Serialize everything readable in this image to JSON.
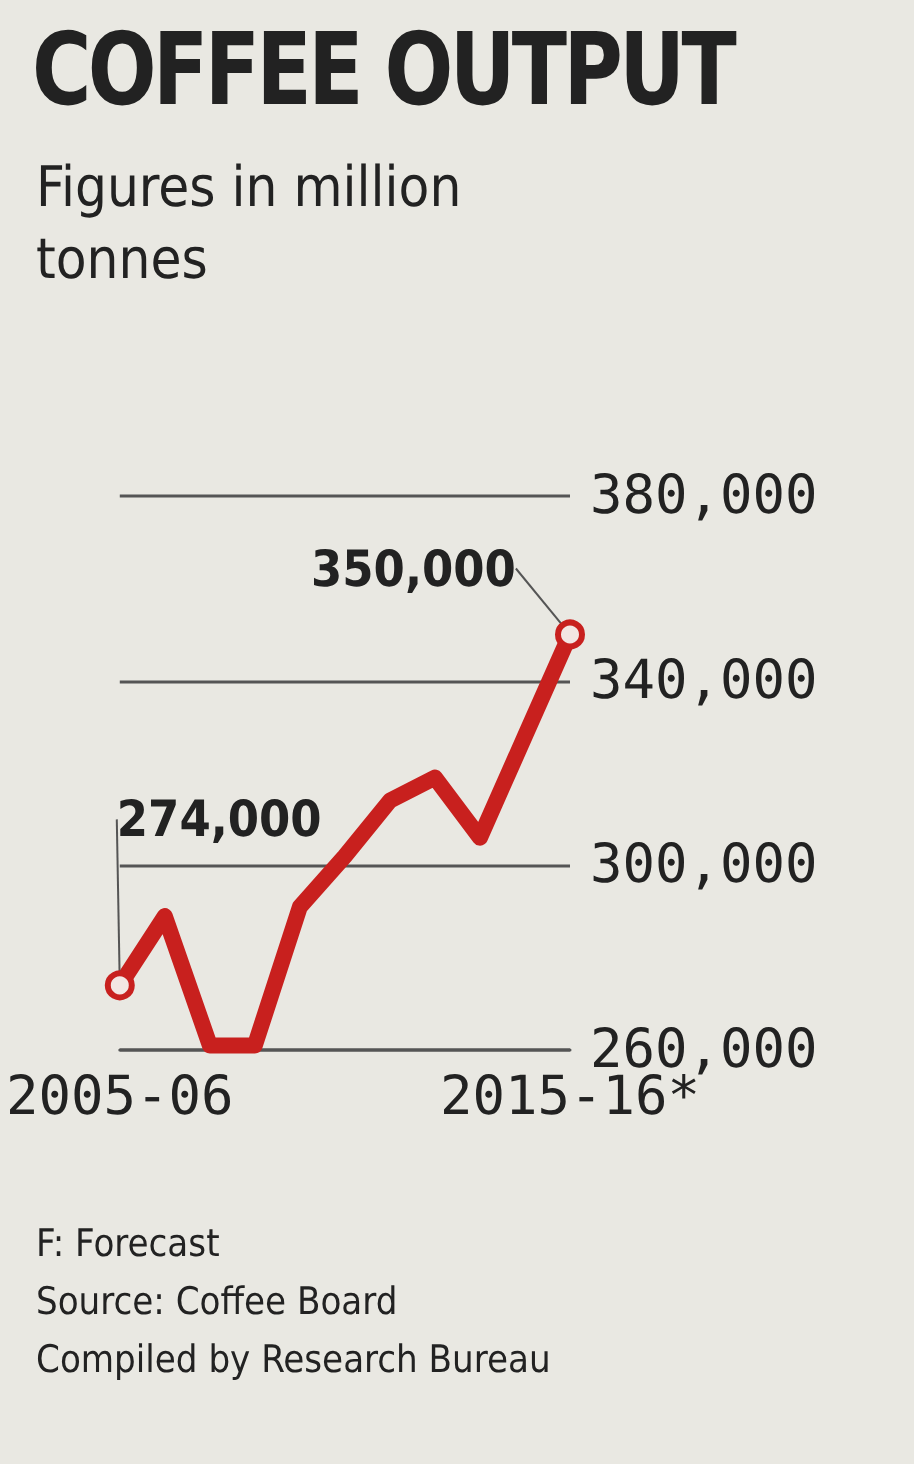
{
  "chart_data": {
    "type": "line",
    "title": "COFFEE OUTPUT",
    "subtitle": "Figures in million tonnes",
    "categories": [
      "2005-06",
      null,
      null,
      null,
      null,
      null,
      null,
      null,
      null,
      null,
      "2015-16*"
    ],
    "series": [
      {
        "color": "#c8201e",
        "values": [
          274000,
          289000,
          261000,
          261000,
          291000,
          302000,
          314000,
          319000,
          306000,
          328000,
          350000
        ],
        "value_labels": [
          "274,000",
          null,
          null,
          null,
          null,
          null,
          null,
          null,
          null,
          null,
          "350,000"
        ]
      }
    ],
    "ylim": [
      260000,
      380000
    ],
    "yticks": [
      {
        "value": 260000,
        "label": "260,000"
      },
      {
        "value": 300000,
        "label": "300,000"
      },
      {
        "value": 340000,
        "label": "340,000"
      },
      {
        "value": 380000,
        "label": "380,000"
      }
    ],
    "grid": "y",
    "line_style": "solid",
    "annotations": [
      "F: Forecast",
      "Source: Coffee Board",
      "Compiled by Research Bureau"
    ]
  }
}
